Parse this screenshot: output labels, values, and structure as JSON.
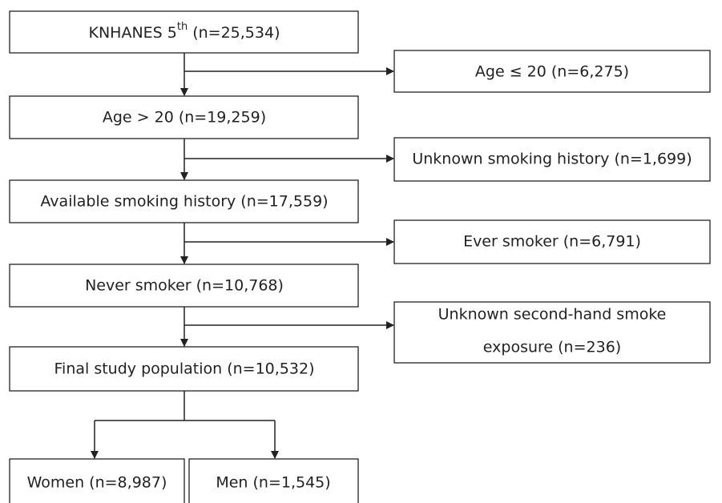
{
  "nodes": [
    {
      "label": "KNHANES 5",
      "superscript": "th",
      "suffix": "(n=25,534)"
    },
    {
      "label": "Age ≤ 20 (n=6,275)"
    },
    {
      "label": "Age > 20 (n=19,259)"
    },
    {
      "label": "Unknown smoking history (n=1,699)"
    },
    {
      "label": "Available smoking history (n=17,559)"
    },
    {
      "label": "Ever smoker (n=6,791)"
    },
    {
      "label": "Never smoker (n=10,768)"
    },
    {
      "lines": [
        "Unknown second-hand smoke",
        "exposure (n=236)"
      ]
    },
    {
      "label": "Final study population (n=10,532)"
    },
    {
      "label": "Women (n=8,987)"
    },
    {
      "label": "Men (n=1,545)"
    }
  ]
}
